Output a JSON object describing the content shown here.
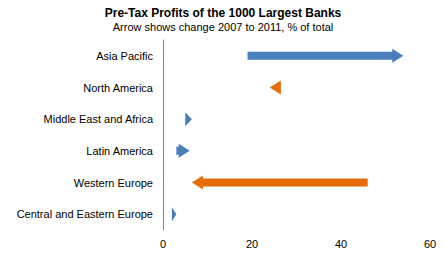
{
  "chart_data": {
    "type": "arrow",
    "orientation": "horizontal",
    "title": "Pre-Tax Profits of the 1000 Largest Banks",
    "subtitle": "Arrow shows change 2007 to 2011, % of total",
    "categories": [
      "Asia Pacific",
      "North America",
      "Middle East and Africa",
      "Latin America",
      "Western Europe",
      "Central and Eastern Europe"
    ],
    "start_values": [
      19,
      26.5,
      5,
      3,
      46,
      2
    ],
    "end_values": [
      54,
      24,
      6.5,
      6,
      6.5,
      3
    ],
    "colors": [
      "#4a7ebb",
      "#e46c0a",
      "#4a7ebb",
      "#4a7ebb",
      "#e46c0a",
      "#4a7ebb"
    ],
    "xlim": [
      0,
      60
    ],
    "xticks": [
      0,
      20,
      40,
      60
    ],
    "grid": false
  }
}
